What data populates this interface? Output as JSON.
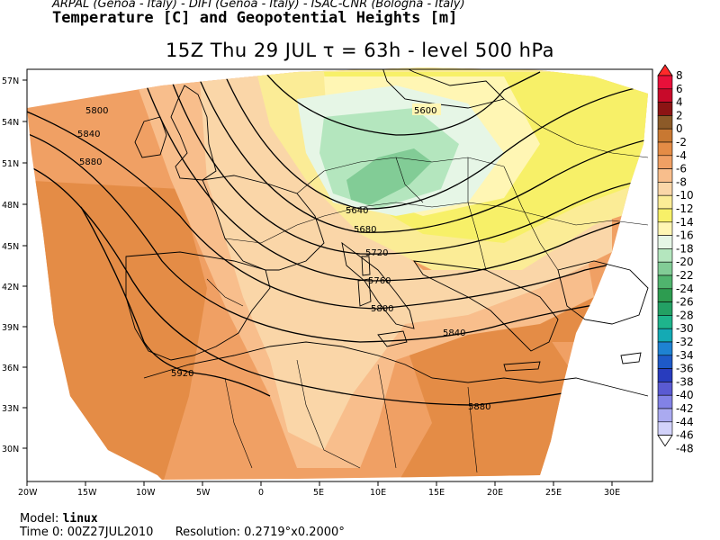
{
  "header": {
    "credits": "ARPAL (Genoa - Italy)  -  DIFI (Genoa - Italy)  -  ISAC-CNR (Bologna - Italy)",
    "title": "Temperature [C] and Geopotential Heights [m]",
    "time_line": "15Z Thu 29 JUL  τ = 63h  -  level 500 hPa"
  },
  "footer": {
    "model_label": "Model:",
    "model_value": "linux",
    "time0_label": "Time 0:",
    "time0_value": "00Z27JUL2010",
    "resolution_label": "Resolution:",
    "resolution_value": "0.2719°x0.2000°"
  },
  "axes": {
    "lon_labels": [
      "20W",
      "15W",
      "10W",
      "5W",
      "0",
      "5E",
      "10E",
      "15E",
      "20E",
      "25E",
      "30E"
    ],
    "lat_labels": [
      "57N",
      "54N",
      "51N",
      "48N",
      "45N",
      "42N",
      "39N",
      "36N",
      "33N",
      "30N"
    ]
  },
  "colorbar": {
    "levels": [
      "8",
      "6",
      "4",
      "2",
      "0",
      "-2",
      "-4",
      "-6",
      "-8",
      "-10",
      "-12",
      "-14",
      "-16",
      "-18",
      "-20",
      "-22",
      "-24",
      "-26",
      "-28",
      "-30",
      "-32",
      "-34",
      "-36",
      "-38",
      "-40",
      "-42",
      "-44",
      "-46",
      "-48"
    ],
    "colors": [
      "#ff2a2a",
      "#e8103a",
      "#c80a2a",
      "#8c1414",
      "#8c5a28",
      "#c87832",
      "#e48c46",
      "#f0a064",
      "#f8be8c",
      "#fad6a8",
      "#fbec96",
      "#f7f068",
      "#fff6b4",
      "#e6f6e6",
      "#b4e6be",
      "#82cc96",
      "#50b46e",
      "#2d9c50",
      "#23a064",
      "#1eb48c",
      "#14aab4",
      "#1e82d2",
      "#1e5ac8",
      "#283cbe",
      "#5a5ad2",
      "#8282e6",
      "#aaaaf0",
      "#d2d2fa"
    ]
  },
  "contours": {
    "labels": [
      "5600",
      "5640",
      "5680",
      "5720",
      "5760",
      "5800",
      "5800",
      "5840",
      "5840",
      "5880",
      "5880",
      "5920"
    ]
  },
  "legend_colors": {
    "orange_dark": "#e48c46",
    "orange": "#f0a064",
    "orange_light": "#f8be8c",
    "peach": "#fad6a8",
    "yellow": "#fbec96",
    "yellow_bright": "#f7f068",
    "cream": "#fff6b4",
    "mint": "#e6f6e6",
    "green_light": "#b4e6be",
    "green": "#82cc96"
  }
}
